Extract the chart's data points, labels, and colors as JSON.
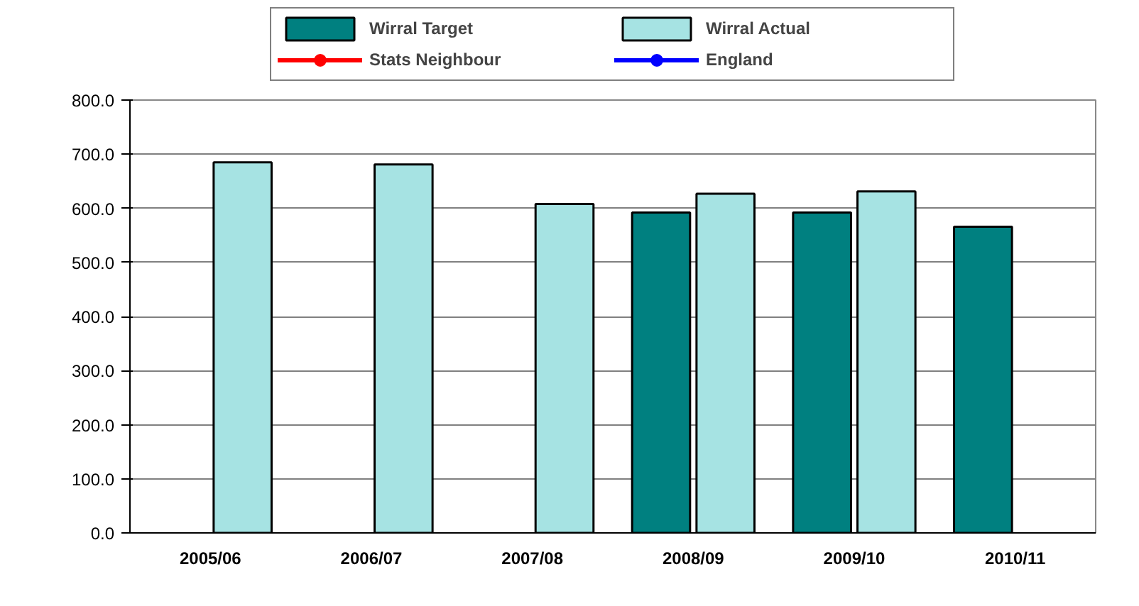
{
  "chart_data": {
    "type": "bar",
    "categories": [
      "2005/06",
      "2006/07",
      "2007/08",
      "2008/09",
      "2009/10",
      "2010/11"
    ],
    "series": [
      {
        "name": "Wirral Target",
        "color": "#008080",
        "values": [
          null,
          null,
          null,
          592,
          592,
          566
        ]
      },
      {
        "name": "Wirral Actual",
        "color": "#a6e3e3",
        "values": [
          685,
          681,
          608,
          627,
          631,
          null
        ]
      },
      {
        "name": "Stats Neighbour",
        "type": "line",
        "color": "#ff0000",
        "values": [
          null,
          null,
          null,
          null,
          null,
          null
        ]
      },
      {
        "name": "England",
        "type": "line",
        "color": "#0000ff",
        "values": [
          null,
          null,
          null,
          null,
          null,
          null
        ]
      }
    ],
    "ylim": [
      0,
      800
    ],
    "yticks": [
      {
        "value": 0,
        "label": "0.0"
      },
      {
        "value": 100,
        "label": "100.0"
      },
      {
        "value": 200,
        "label": "200.0"
      },
      {
        "value": 300,
        "label": "300.0"
      },
      {
        "value": 400,
        "label": "400.0"
      },
      {
        "value": 500,
        "label": "500.0"
      },
      {
        "value": 600,
        "label": "600.0"
      },
      {
        "value": 700,
        "label": "700.0"
      },
      {
        "value": 800,
        "label": "800.0"
      }
    ],
    "grid": "y",
    "legend": "top",
    "marker": "circle"
  }
}
